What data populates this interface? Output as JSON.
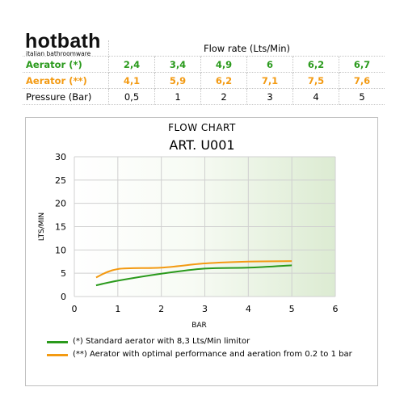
{
  "logo": {
    "brand": "hotbath",
    "tagline": "italian bathroomware"
  },
  "table": {
    "header": "Flow rate (Lts/Min)",
    "rows": [
      {
        "label": "Aerator (*)",
        "color": "#2a9a1c",
        "values": [
          "2,4",
          "3,4",
          "4,9",
          "6",
          "6,2",
          "6,7"
        ]
      },
      {
        "label": "Aerator (**)",
        "color": "#f39a12",
        "values": [
          "4,1",
          "5,9",
          "6,2",
          "7,1",
          "7,5",
          "7,6"
        ]
      },
      {
        "label": "Pressure (Bar)",
        "color": "#000000",
        "values": [
          "0,5",
          "1",
          "2",
          "3",
          "4",
          "5"
        ]
      }
    ]
  },
  "chart_data": {
    "type": "line",
    "title": "FLOW CHART",
    "subtitle": "ART. U001",
    "xlabel": "BAR",
    "ylabel": "LTS/MIN",
    "xlim": [
      0,
      6
    ],
    "ylim": [
      0,
      30
    ],
    "xticks": [
      "0",
      "1",
      "2",
      "3",
      "4",
      "5",
      "6"
    ],
    "yticks": [
      "0",
      "5",
      "10",
      "15",
      "20",
      "25",
      "30"
    ],
    "grid": true,
    "legend": "bottom",
    "series": [
      {
        "name": "(*) Standard aerator with 8,3 Lts/Min limitor",
        "color": "#2a9a1c",
        "x": [
          0.5,
          1,
          2,
          3,
          4,
          5
        ],
        "y": [
          2.4,
          3.4,
          4.9,
          6,
          6.2,
          6.7
        ]
      },
      {
        "name": "(**) Aerator with optimal performance and aeration from 0.2 to 1 bar",
        "color": "#f39a12",
        "x": [
          0.5,
          1,
          2,
          3,
          4,
          5
        ],
        "y": [
          4.1,
          5.9,
          6.2,
          7.1,
          7.5,
          7.6
        ]
      }
    ]
  }
}
